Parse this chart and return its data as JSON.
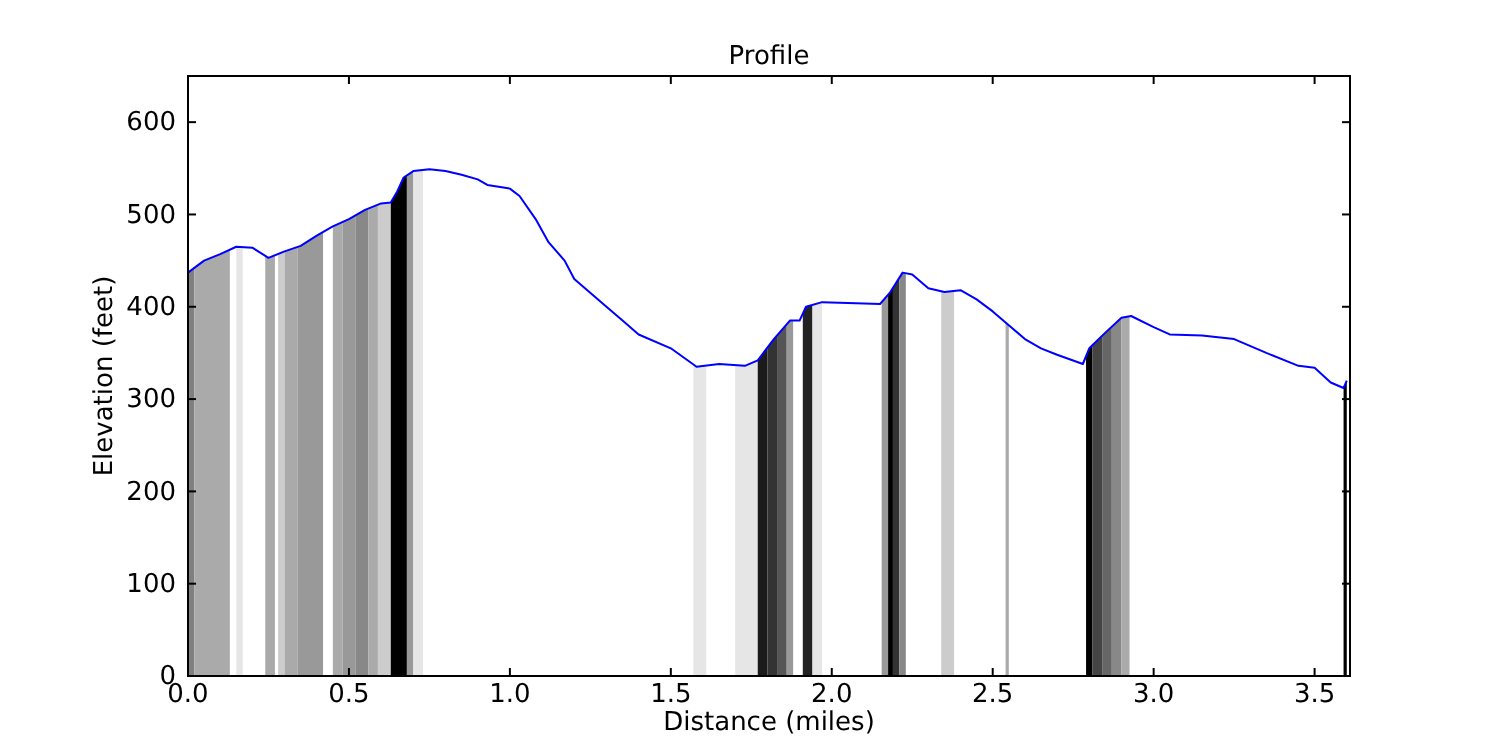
{
  "chart_data": {
    "type": "line",
    "title": "Profile",
    "xlabel": "Distance (miles)",
    "ylabel": "Elevation (feet)",
    "x": [
      0,
      0.05,
      0.1,
      0.15,
      0.2,
      0.25,
      0.3,
      0.35,
      0.4,
      0.45,
      0.5,
      0.55,
      0.6,
      0.63,
      0.65,
      0.67,
      0.7,
      0.75,
      0.8,
      0.85,
      0.9,
      0.93,
      1.0,
      1.03,
      1.08,
      1.12,
      1.17,
      1.2,
      1.3,
      1.35,
      1.4,
      1.5,
      1.58,
      1.65,
      1.73,
      1.77,
      1.82,
      1.87,
      1.9,
      1.92,
      1.97,
      2.05,
      2.15,
      2.18,
      2.22,
      2.25,
      2.3,
      2.35,
      2.4,
      2.45,
      2.5,
      2.55,
      2.6,
      2.65,
      2.7,
      2.78,
      2.8,
      2.85,
      2.9,
      2.93,
      3.0,
      3.05,
      3.15,
      3.25,
      3.35,
      3.45,
      3.5,
      3.55,
      3.59,
      3.6
    ],
    "series": [
      {
        "color": "#0000ff",
        "values": [
          437,
          450,
          457,
          465,
          464,
          453,
          460,
          466,
          477,
          487,
          495,
          505,
          512,
          513,
          525,
          540,
          547,
          549,
          547,
          543,
          538,
          532,
          528,
          520,
          495,
          470,
          450,
          430,
          400,
          385,
          370,
          355,
          335,
          338,
          336,
          342,
          365,
          385,
          385,
          400,
          405,
          404,
          403,
          415,
          437,
          435,
          420,
          416,
          418,
          408,
          395,
          380,
          365,
          355,
          348,
          338,
          355,
          372,
          388,
          390,
          378,
          370,
          369,
          365,
          350,
          336,
          334,
          318,
          312,
          320
        ]
      }
    ],
    "xlim": [
      0,
      3.61
    ],
    "ylim": [
      0,
      650
    ],
    "xticks": [
      {
        "value": 0,
        "label": "0.0"
      },
      {
        "value": 0.5,
        "label": "0.5"
      },
      {
        "value": 1,
        "label": "1.0"
      },
      {
        "value": 1.5,
        "label": "1.5"
      },
      {
        "value": 2,
        "label": "2.0"
      },
      {
        "value": 2.5,
        "label": "2.5"
      },
      {
        "value": 3,
        "label": "3.0"
      },
      {
        "value": 3.5,
        "label": "3.5"
      }
    ],
    "yticks": [
      0,
      100,
      200,
      300,
      400,
      500,
      600
    ],
    "grid": false,
    "marker": "none",
    "line_style": "solid",
    "bands": [
      {
        "axis": "x",
        "from": 0,
        "to": 0.02,
        "color": "#808080"
      },
      {
        "axis": "x",
        "from": 0.02,
        "to": 0.13,
        "color": "#aaaaaa"
      },
      {
        "axis": "x",
        "from": 0.15,
        "to": 0.17,
        "color": "#e6e6e6"
      },
      {
        "axis": "x",
        "from": 0.24,
        "to": 0.27,
        "color": "#aaaaaa"
      },
      {
        "axis": "x",
        "from": 0.28,
        "to": 0.3,
        "color": "#cccccc"
      },
      {
        "axis": "x",
        "from": 0.3,
        "to": 0.34,
        "color": "#aaaaaa"
      },
      {
        "axis": "x",
        "from": 0.34,
        "to": 0.42,
        "color": "#999999"
      },
      {
        "axis": "x",
        "from": 0.42,
        "to": 0.45,
        "color": "#ffffff"
      },
      {
        "axis": "x",
        "from": 0.45,
        "to": 0.48,
        "color": "#aaaaaa"
      },
      {
        "axis": "x",
        "from": 0.48,
        "to": 0.52,
        "color": "#999999"
      },
      {
        "axis": "x",
        "from": 0.52,
        "to": 0.56,
        "color": "#888888"
      },
      {
        "axis": "x",
        "from": 0.56,
        "to": 0.59,
        "color": "#aaaaaa"
      },
      {
        "axis": "x",
        "from": 0.59,
        "to": 0.63,
        "color": "#cccccc"
      },
      {
        "axis": "x",
        "from": 0.63,
        "to": 0.68,
        "color": "#000000"
      },
      {
        "axis": "x",
        "from": 0.68,
        "to": 0.7,
        "color": "#999999"
      },
      {
        "axis": "x",
        "from": 0.7,
        "to": 0.73,
        "color": "#e6e6e6"
      },
      {
        "axis": "x",
        "from": 1.57,
        "to": 1.61,
        "color": "#e6e6e6"
      },
      {
        "axis": "x",
        "from": 1.7,
        "to": 1.77,
        "color": "#e6e6e6"
      },
      {
        "axis": "x",
        "from": 1.77,
        "to": 1.8,
        "color": "#1a1a1a"
      },
      {
        "axis": "x",
        "from": 1.8,
        "to": 1.83,
        "color": "#333333"
      },
      {
        "axis": "x",
        "from": 1.83,
        "to": 1.86,
        "color": "#555555"
      },
      {
        "axis": "x",
        "from": 1.86,
        "to": 1.88,
        "color": "#999999"
      },
      {
        "axis": "x",
        "from": 1.91,
        "to": 1.94,
        "color": "#222222"
      },
      {
        "axis": "x",
        "from": 1.94,
        "to": 1.97,
        "color": "#e6e6e6"
      },
      {
        "axis": "x",
        "from": 2.155,
        "to": 2.175,
        "color": "#999999"
      },
      {
        "axis": "x",
        "from": 2.175,
        "to": 2.19,
        "color": "#000000"
      },
      {
        "axis": "x",
        "from": 2.19,
        "to": 2.21,
        "color": "#333333"
      },
      {
        "axis": "x",
        "from": 2.21,
        "to": 2.23,
        "color": "#888888"
      },
      {
        "axis": "x",
        "from": 2.34,
        "to": 2.38,
        "color": "#cccccc"
      },
      {
        "axis": "x",
        "from": 2.54,
        "to": 2.55,
        "color": "#aaaaaa"
      },
      {
        "axis": "x",
        "from": 2.79,
        "to": 2.81,
        "color": "#000000"
      },
      {
        "axis": "x",
        "from": 2.81,
        "to": 2.84,
        "color": "#444444"
      },
      {
        "axis": "x",
        "from": 2.84,
        "to": 2.87,
        "color": "#666666"
      },
      {
        "axis": "x",
        "from": 2.87,
        "to": 2.9,
        "color": "#888888"
      },
      {
        "axis": "x",
        "from": 2.9,
        "to": 2.925,
        "color": "#aaaaaa"
      },
      {
        "axis": "x",
        "from": 3.59,
        "to": 3.61,
        "color": "#000000"
      }
    ]
  }
}
